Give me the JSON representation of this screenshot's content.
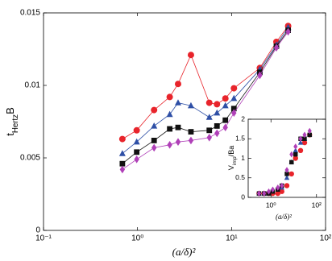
{
  "chart_data": [
    {
      "type": "line",
      "xlog": true,
      "xlabel": "(a/δ)²",
      "ylabel": [
        "t",
        "Hertz",
        "B"
      ],
      "xlim": [
        0.1,
        100
      ],
      "ylim": [
        0,
        0.015
      ],
      "xticks": [
        {
          "value": 0.1,
          "label": "10⁻¹"
        },
        {
          "value": 1,
          "label": "10⁰"
        },
        {
          "value": 10,
          "label": "10¹"
        },
        {
          "value": 100,
          "label": "10²"
        }
      ],
      "yticks": [
        0,
        0.005,
        0.01,
        0.015
      ],
      "x": [
        0.69,
        0.98,
        1.5,
        2.2,
        2.7,
        3.7,
        5.8,
        7.0,
        8.6,
        10.6,
        20,
        30,
        40
      ],
      "series": [
        {
          "color": "#e8242b",
          "marker": "circle",
          "values": [
            0.0063,
            0.0069,
            0.0083,
            0.0092,
            0.0101,
            0.0121,
            0.0088,
            0.0087,
            0.0091,
            0.0098,
            0.0112,
            0.013,
            0.0141
          ]
        },
        {
          "color": "#2e4fa6",
          "marker": "triangle",
          "values": [
            0.0053,
            0.0061,
            0.0072,
            0.008,
            0.0088,
            0.0086,
            0.0078,
            0.0081,
            0.0086,
            0.0091,
            0.0111,
            0.0128,
            0.014
          ]
        },
        {
          "color": "#111111",
          "marker": "square",
          "values": [
            0.0046,
            0.0054,
            0.0062,
            0.007,
            0.0071,
            0.0068,
            0.0069,
            0.0072,
            0.0076,
            0.0084,
            0.0109,
            0.0127,
            0.0138
          ]
        },
        {
          "color": "#b040b8",
          "marker": "diamond",
          "values": [
            0.0042,
            0.0049,
            0.0057,
            0.0059,
            0.0061,
            0.0062,
            0.0064,
            0.0067,
            0.0071,
            0.0081,
            0.0107,
            0.0126,
            0.0137
          ]
        }
      ]
    },
    {
      "type": "scatter",
      "xlog": true,
      "xlabel": "(a/δ)²",
      "ylabel": [
        "V",
        "imp",
        "/Ba"
      ],
      "xlim": [
        0.1,
        250
      ],
      "ylim": [
        0,
        2
      ],
      "xticks": [
        {
          "value": 1,
          "label": "10⁰"
        },
        {
          "value": 100,
          "label": "10²"
        }
      ],
      "yticks": [
        0,
        0.5,
        1,
        1.5,
        2
      ],
      "x": [
        0.3,
        0.5,
        0.8,
        1.2,
        2,
        3,
        5,
        8,
        12,
        20,
        30,
        50
      ],
      "series": [
        {
          "color": "#e8242b",
          "marker": "circle",
          "values": [
            0.1,
            0.1,
            0.1,
            0.1,
            0.1,
            0.15,
            0.3,
            0.6,
            1.0,
            1.2,
            1.4,
            1.6
          ]
        },
        {
          "color": "#2e4fa6",
          "marker": "triangle",
          "values": [
            0.1,
            0.1,
            0.1,
            0.15,
            0.2,
            0.25,
            0.5,
            0.9,
            1.2,
            1.4,
            1.5,
            1.6
          ]
        },
        {
          "color": "#111111",
          "marker": "square",
          "values": [
            0.1,
            0.1,
            0.1,
            0.15,
            0.2,
            0.3,
            0.6,
            0.9,
            1.1,
            1.5,
            1.5,
            1.6
          ]
        },
        {
          "color": "#b040b8",
          "marker": "diamond",
          "values": [
            0.1,
            0.1,
            0.15,
            0.2,
            0.25,
            0.3,
            0.7,
            1.1,
            1.3,
            1.5,
            1.6,
            1.7
          ]
        }
      ]
    }
  ]
}
